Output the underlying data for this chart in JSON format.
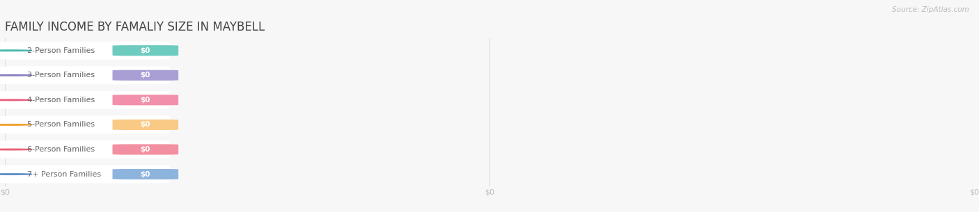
{
  "title": "FAMILY INCOME BY FAMALIY SIZE IN MAYBELL",
  "source": "Source: ZipAtlas.com",
  "categories": [
    "2-Person Families",
    "3-Person Families",
    "4-Person Families",
    "5-Person Families",
    "6-Person Families",
    "7+ Person Families"
  ],
  "values": [
    0,
    0,
    0,
    0,
    0,
    0
  ],
  "bar_colors": [
    "#6dcbbf",
    "#a99fd4",
    "#f28fab",
    "#f9ca86",
    "#f28fa0",
    "#8db4dc"
  ],
  "dot_colors": [
    "#45b8aa",
    "#8a7cc0",
    "#e86080",
    "#f0a030",
    "#e86075",
    "#6090c8"
  ],
  "tick_labels": [
    "$0",
    "$0",
    "$0"
  ],
  "background_color": "#f7f7f7",
  "row_bg_color": "#ffffff",
  "title_color": "#444444",
  "source_color": "#bbbbbb",
  "tick_color": "#bbbbbb",
  "grid_color": "#dddddd",
  "label_text_color": "#666666",
  "title_fontsize": 12,
  "tick_fontsize": 8,
  "label_fontsize": 8,
  "value_fontsize": 7.5
}
